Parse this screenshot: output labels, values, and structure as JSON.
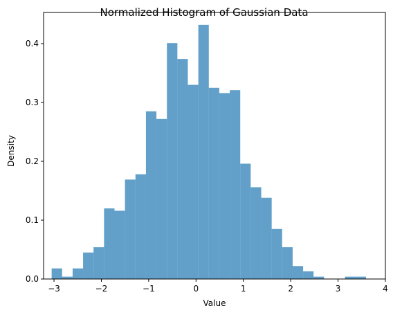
{
  "chart_data": {
    "type": "bar",
    "title": "Normalized Histogram of Gaussian Data",
    "xlabel": "Value",
    "ylabel": "Density",
    "xlim": [
      -3.22,
      4.0
    ],
    "ylim": [
      0,
      0.453
    ],
    "xticks": [
      -3,
      -2,
      -1,
      0,
      1,
      2,
      3,
      4
    ],
    "xtick_labels": [
      "−3",
      "−2",
      "−1",
      "0",
      "1",
      "2",
      "3",
      "4"
    ],
    "yticks": [
      0.0,
      0.1,
      0.2,
      0.3,
      0.4
    ],
    "ytick_labels": [
      "0.0",
      "0.1",
      "0.2",
      "0.3",
      "0.4"
    ],
    "grid": false,
    "bin_edges": [
      -3.05,
      -2.829,
      -2.607,
      -2.386,
      -2.165,
      -1.943,
      -1.722,
      -1.501,
      -1.279,
      -1.058,
      -0.837,
      -0.615,
      -0.394,
      -0.173,
      0.049,
      0.27,
      0.491,
      0.713,
      0.934,
      1.155,
      1.377,
      1.598,
      1.819,
      2.041,
      2.262,
      2.483,
      2.705,
      2.926,
      3.147,
      3.369,
      3.59
    ],
    "values": [
      0.018,
      0.004,
      0.018,
      0.045,
      0.054,
      0.12,
      0.116,
      0.169,
      0.178,
      0.285,
      0.272,
      0.401,
      0.374,
      0.33,
      0.432,
      0.325,
      0.316,
      0.321,
      0.196,
      0.156,
      0.138,
      0.085,
      0.054,
      0.022,
      0.013,
      0.004,
      0.0,
      0.0,
      0.004,
      0.004
    ],
    "color": "#1f77b4"
  }
}
